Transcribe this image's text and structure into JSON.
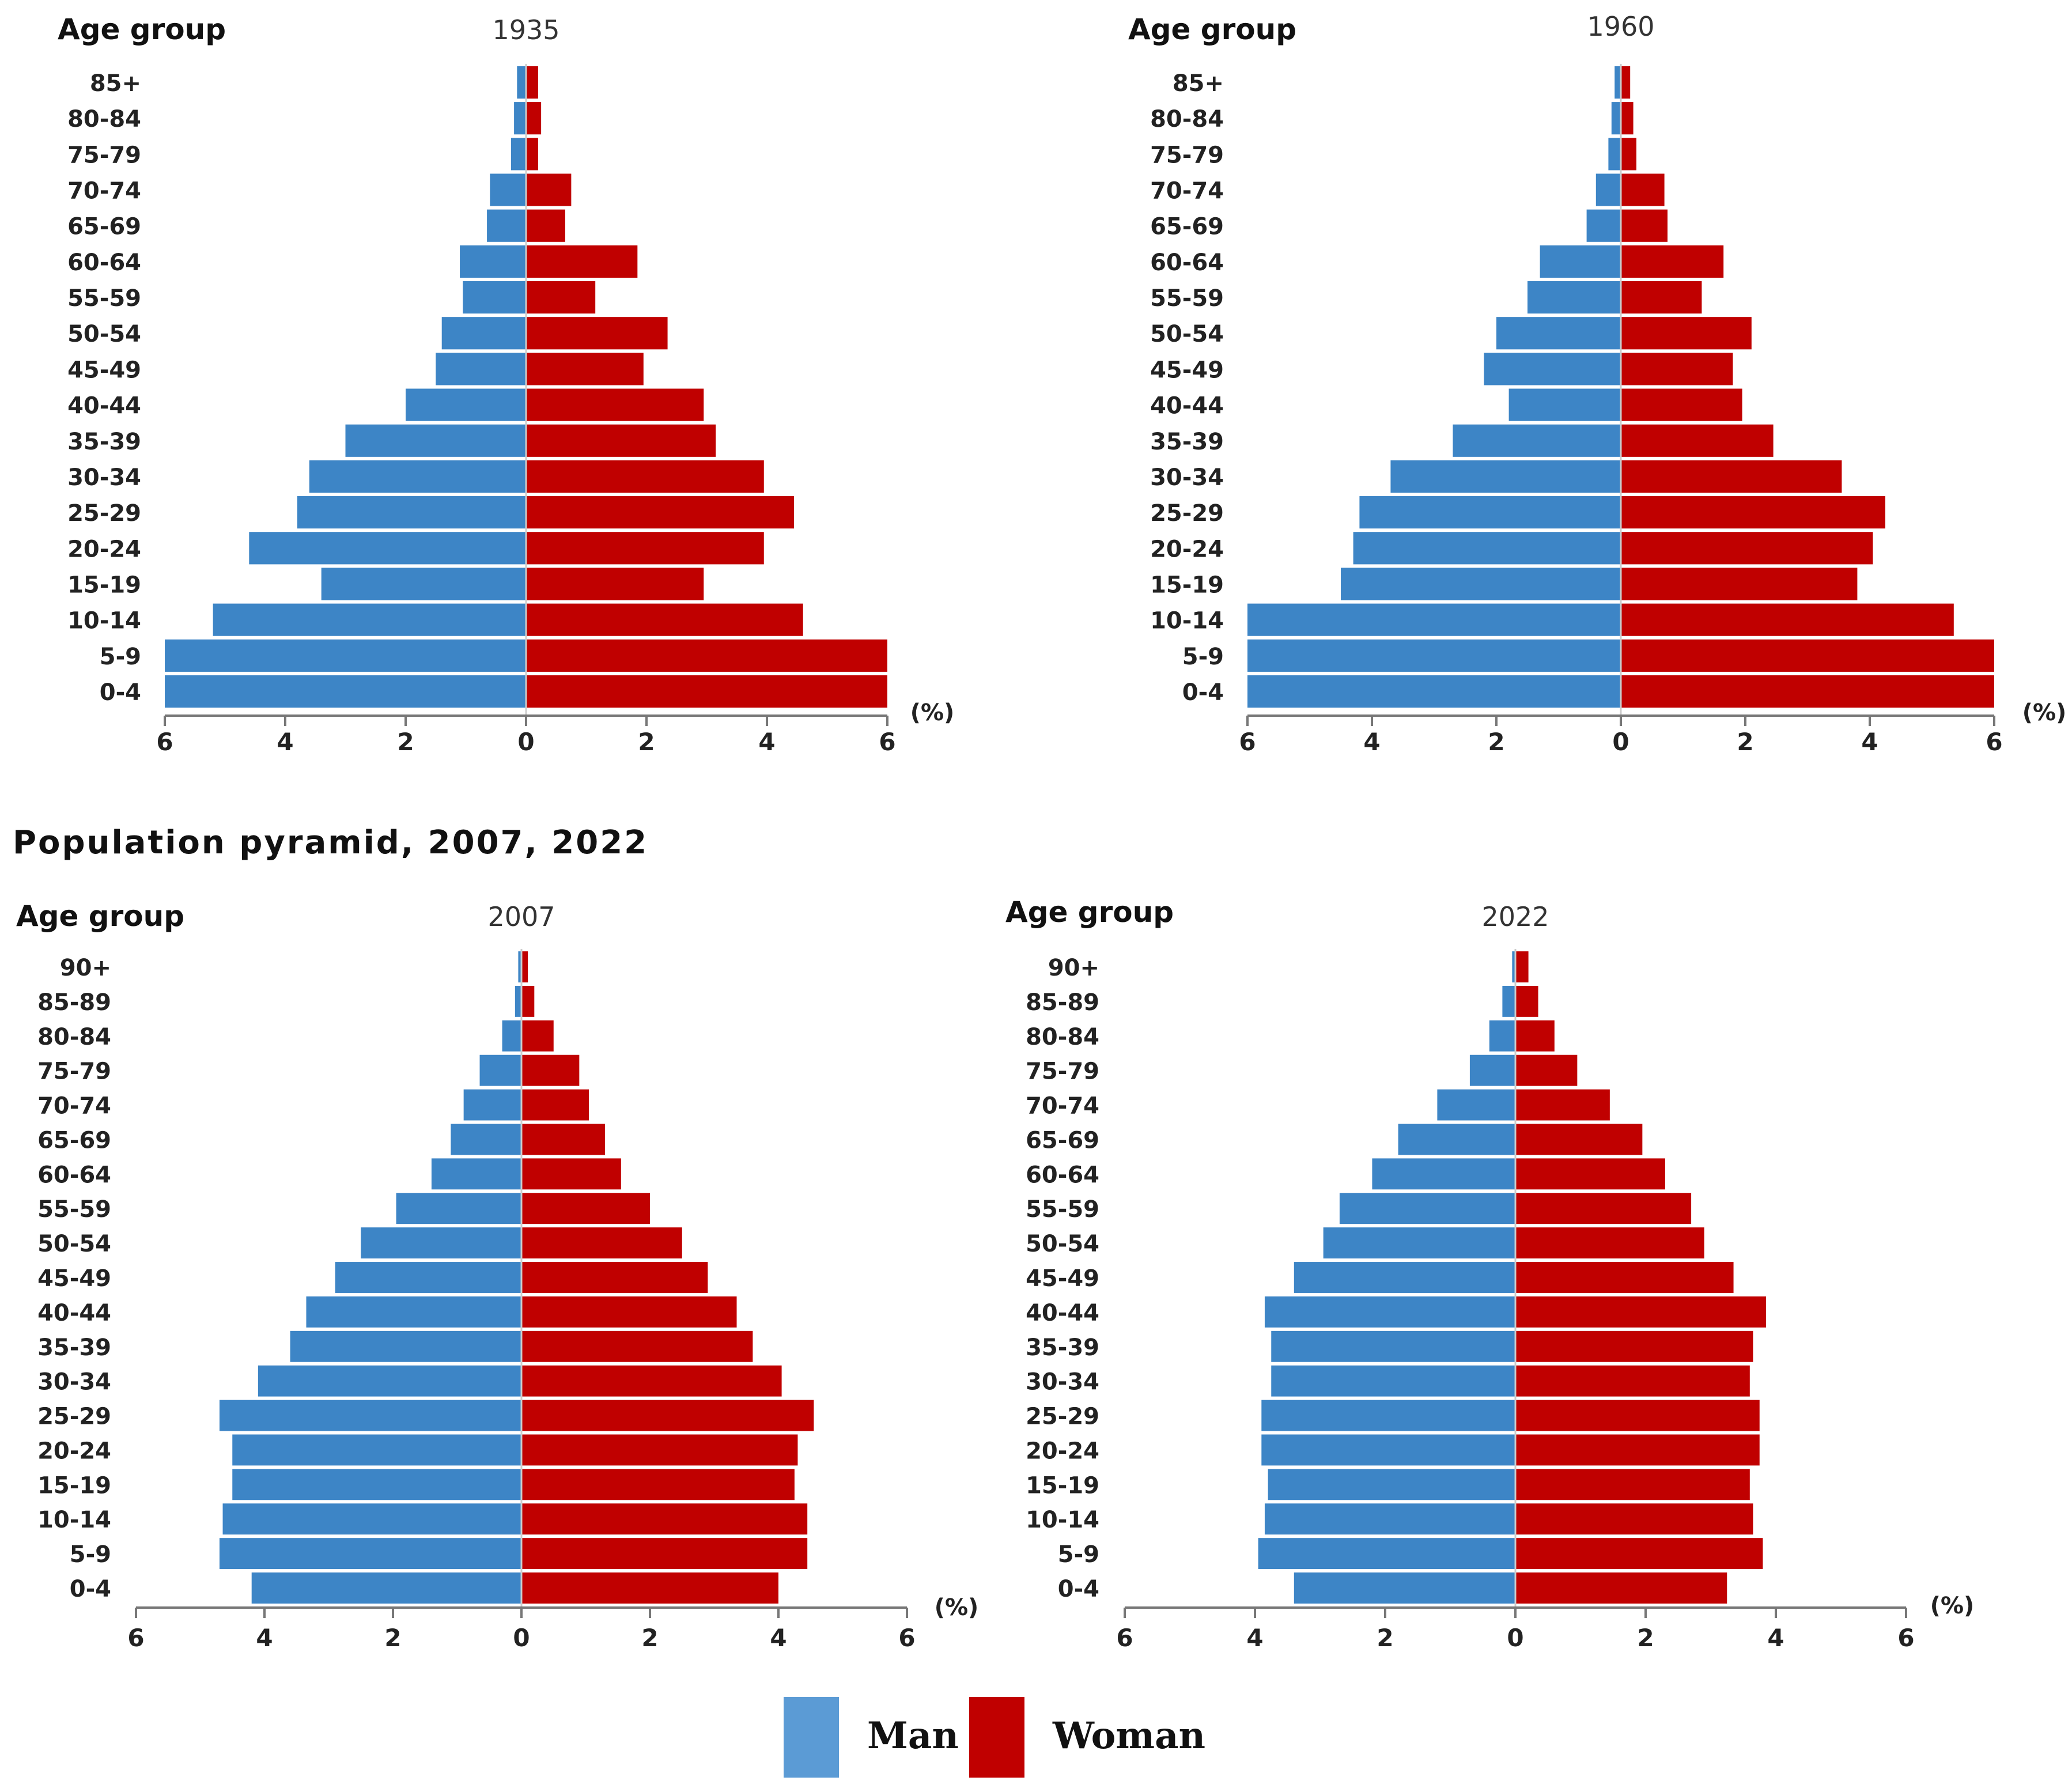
{
  "section_title": "Population pyramid, 2007, 2022",
  "legend": {
    "man": "Man",
    "woman": "Woman"
  },
  "colors": {
    "man": "#3d85c6",
    "woman": "#c00000",
    "axis": "#777777",
    "text": "#111111"
  },
  "chart_data": [
    {
      "type": "bar",
      "orientation": "horizontal-pyramid",
      "title": "1935",
      "ylabel": "Age group",
      "unit_label": "(%)",
      "xlim": [
        -6,
        6
      ],
      "tick_labels": [
        "6",
        "4",
        "2",
        "0",
        "2",
        "4",
        "6"
      ],
      "categories": [
        "85+",
        "80-84",
        "75-79",
        "70-74",
        "65-69",
        "60-64",
        "55-59",
        "50-54",
        "45-49",
        "40-44",
        "35-39",
        "30-34",
        "25-29",
        "20-24",
        "15-19",
        "10-14",
        "5-9",
        "0-4"
      ],
      "series": [
        {
          "name": "Man",
          "values": [
            0.15,
            0.2,
            0.25,
            0.6,
            0.65,
            1.1,
            1.05,
            1.4,
            1.5,
            2.0,
            3.0,
            3.6,
            3.8,
            4.6,
            3.4,
            5.2,
            6.0,
            6.0
          ]
        },
        {
          "name": "Woman",
          "values": [
            0.2,
            0.25,
            0.2,
            0.75,
            0.65,
            1.85,
            1.15,
            2.35,
            1.95,
            2.95,
            3.15,
            3.95,
            4.45,
            3.95,
            2.95,
            4.6,
            6.0,
            6.0
          ]
        }
      ]
    },
    {
      "type": "bar",
      "orientation": "horizontal-pyramid",
      "title": "1960",
      "ylabel": "Age group",
      "unit_label": "(%)",
      "xlim": [
        -6,
        6
      ],
      "tick_labels": [
        "6",
        "4",
        "2",
        "0",
        "2",
        "4",
        "6"
      ],
      "categories": [
        "85+",
        "80-84",
        "75-79",
        "70-74",
        "65-69",
        "60-64",
        "55-59",
        "50-54",
        "45-49",
        "40-44",
        "35-39",
        "30-34",
        "25-29",
        "20-24",
        "15-19",
        "10-14",
        "5-9",
        "0-4"
      ],
      "series": [
        {
          "name": "Man",
          "values": [
            0.1,
            0.15,
            0.2,
            0.4,
            0.55,
            1.3,
            1.5,
            2.0,
            2.2,
            1.8,
            2.7,
            3.7,
            4.2,
            4.3,
            4.5,
            6.0,
            6.0,
            6.0
          ]
        },
        {
          "name": "Woman",
          "values": [
            0.15,
            0.2,
            0.25,
            0.7,
            0.75,
            1.65,
            1.3,
            2.1,
            1.8,
            1.95,
            2.45,
            3.55,
            4.25,
            4.05,
            3.8,
            5.35,
            6.0,
            6.0
          ]
        }
      ]
    },
    {
      "type": "bar",
      "orientation": "horizontal-pyramid",
      "title": "2007",
      "ylabel": "Age group",
      "unit_label": "(%)",
      "xlim": [
        -6,
        6
      ],
      "tick_labels": [
        "6",
        "4",
        "2",
        "0",
        "2",
        "4",
        "6"
      ],
      "categories": [
        "90+",
        "85-89",
        "80-84",
        "75-79",
        "70-74",
        "65-69",
        "60-64",
        "55-59",
        "50-54",
        "45-49",
        "40-44",
        "35-39",
        "30-34",
        "25-29",
        "20-24",
        "15-19",
        "10-14",
        "5-9",
        "0-4"
      ],
      "series": [
        {
          "name": "Man",
          "values": [
            0.05,
            0.1,
            0.3,
            0.65,
            0.9,
            1.1,
            1.4,
            1.95,
            2.5,
            2.9,
            3.35,
            3.6,
            4.1,
            4.7,
            4.5,
            4.5,
            4.65,
            4.7,
            4.2
          ]
        },
        {
          "name": "Woman",
          "values": [
            0.1,
            0.2,
            0.5,
            0.9,
            1.05,
            1.3,
            1.55,
            2.0,
            2.5,
            2.9,
            3.35,
            3.6,
            4.05,
            4.55,
            4.3,
            4.25,
            4.45,
            4.45,
            4.0
          ]
        }
      ]
    },
    {
      "type": "bar",
      "orientation": "horizontal-pyramid",
      "title": "2022",
      "ylabel": "Age group",
      "unit_label": "(%)",
      "xlim": [
        -6,
        6
      ],
      "tick_labels": [
        "6",
        "4",
        "2",
        "0",
        "2",
        "4",
        "6"
      ],
      "categories": [
        "90+",
        "85-89",
        "80-84",
        "75-79",
        "70-74",
        "65-69",
        "60-64",
        "55-59",
        "50-54",
        "45-49",
        "40-44",
        "35-39",
        "30-34",
        "25-29",
        "20-24",
        "15-19",
        "10-14",
        "5-9",
        "0-4"
      ],
      "series": [
        {
          "name": "Man",
          "values": [
            0.05,
            0.2,
            0.4,
            0.7,
            1.2,
            1.8,
            2.2,
            2.7,
            2.95,
            3.4,
            3.85,
            3.75,
            3.75,
            3.9,
            3.9,
            3.8,
            3.85,
            3.95,
            3.4
          ]
        },
        {
          "name": "Woman",
          "values": [
            0.2,
            0.35,
            0.6,
            0.95,
            1.45,
            1.95,
            2.3,
            2.7,
            2.9,
            3.35,
            3.85,
            3.65,
            3.6,
            3.75,
            3.75,
            3.6,
            3.65,
            3.8,
            3.25
          ]
        }
      ]
    }
  ]
}
